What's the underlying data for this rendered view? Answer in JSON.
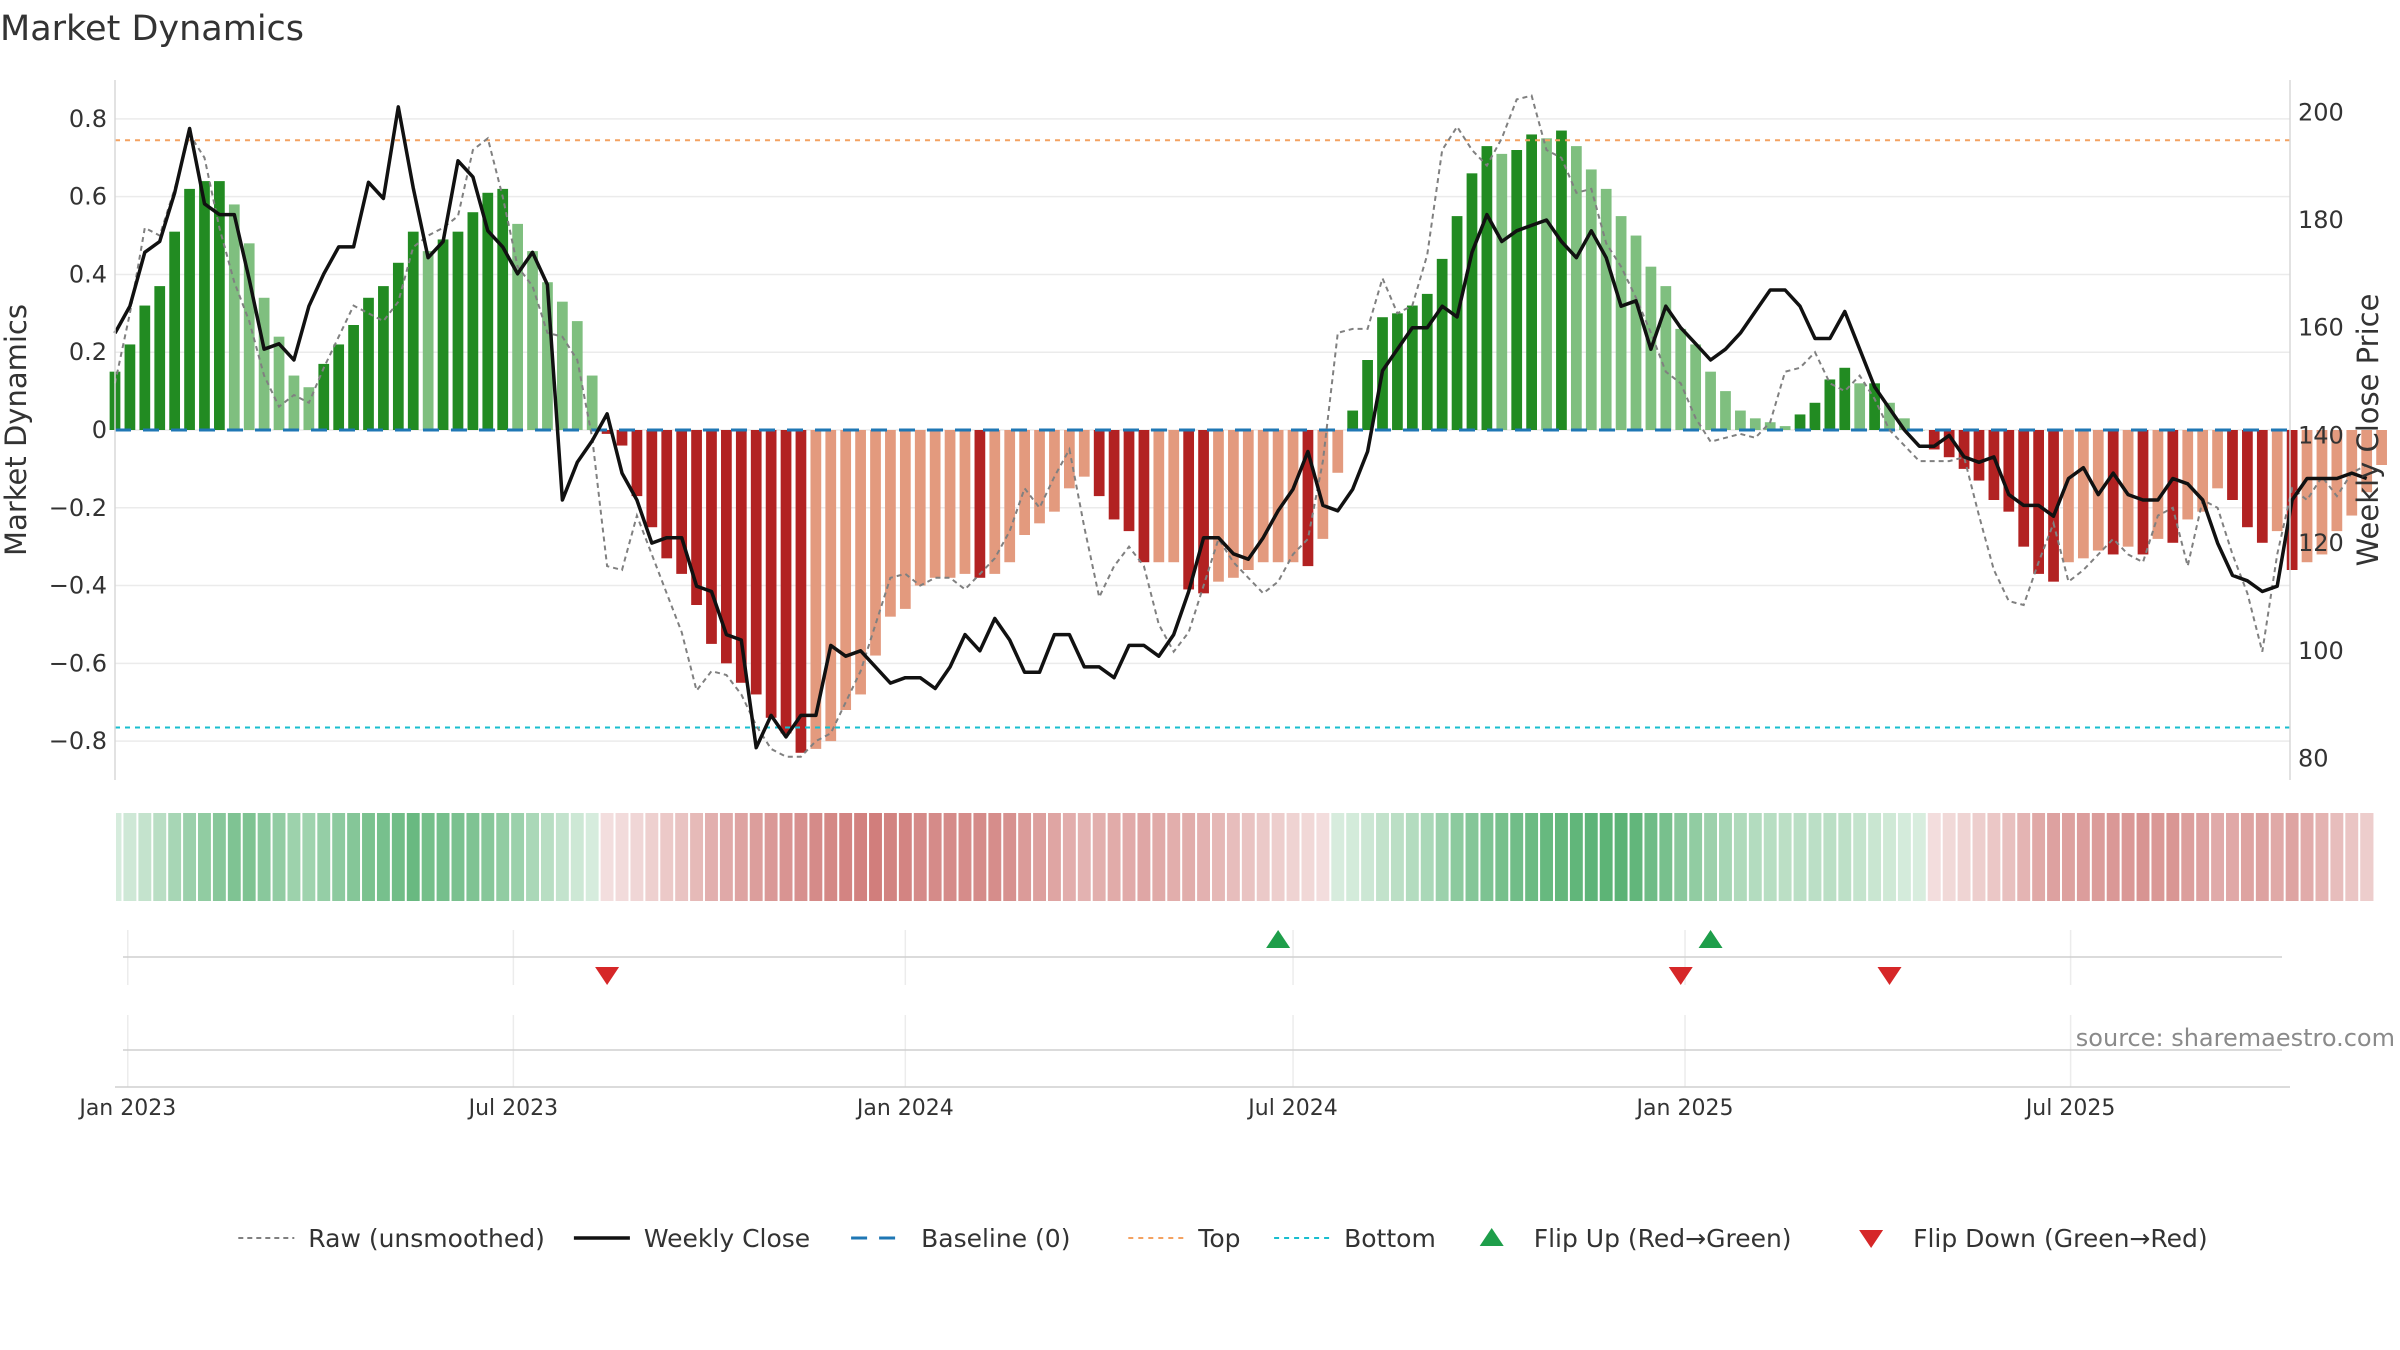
{
  "chart_data": {
    "type": "bar",
    "title": "Market Dynamics",
    "ylabel": "Market Dynamics",
    "y2label": "Weekly Close Price",
    "ylim": [
      -0.9,
      0.9
    ],
    "y2lim": [
      76,
      206
    ],
    "xlim": [
      "2022-12-26",
      "2025-10-12"
    ],
    "yticks": [
      0.8,
      0.6,
      0.4,
      0.2,
      0,
      -0.2,
      -0.4,
      -0.6,
      -0.8
    ],
    "ytick_labels": [
      "0.8",
      "0.6",
      "0.4",
      "0.2",
      "0",
      "−0.2",
      "−0.4",
      "−0.6",
      "−0.8"
    ],
    "y2ticks": [
      200,
      180,
      160,
      140,
      120,
      100,
      80
    ],
    "y2tick_labels": [
      "200",
      "180",
      "160",
      "140",
      "120",
      "100",
      "80"
    ],
    "xticks": [
      {
        "date": "2023-01-01",
        "label": "Jan 2023"
      },
      {
        "date": "2023-07-01",
        "label": "Jul 2023"
      },
      {
        "date": "2024-01-01",
        "label": "Jan 2024"
      },
      {
        "date": "2024-07-01",
        "label": "Jul 2024"
      },
      {
        "date": "2025-01-01",
        "label": "Jan 2025"
      },
      {
        "date": "2025-07-01",
        "label": "Jul 2025"
      }
    ],
    "start_date": "2022-12-26",
    "week_days": 7,
    "top": 0.745,
    "bottom": -0.765,
    "baseline": 0,
    "bars": [
      0.15,
      0.22,
      0.32,
      0.37,
      0.51,
      0.62,
      0.64,
      0.64,
      0.58,
      0.48,
      0.34,
      0.24,
      0.14,
      0.11,
      0.17,
      0.22,
      0.27,
      0.34,
      0.37,
      0.43,
      0.51,
      0.46,
      0.49,
      0.51,
      0.56,
      0.61,
      0.62,
      0.53,
      0.46,
      0.38,
      0.33,
      0.28,
      0.14,
      -0.01,
      -0.04,
      -0.17,
      -0.25,
      -0.33,
      -0.37,
      -0.45,
      -0.55,
      -0.6,
      -0.65,
      -0.68,
      -0.74,
      -0.78,
      -0.83,
      -0.82,
      -0.8,
      -0.72,
      -0.68,
      -0.58,
      -0.48,
      -0.46,
      -0.4,
      -0.38,
      -0.38,
      -0.37,
      -0.38,
      -0.37,
      -0.34,
      -0.27,
      -0.24,
      -0.21,
      -0.15,
      -0.12,
      -0.17,
      -0.23,
      -0.26,
      -0.34,
      -0.34,
      -0.34,
      -0.41,
      -0.42,
      -0.39,
      -0.38,
      -0.36,
      -0.34,
      -0.34,
      -0.34,
      -0.35,
      -0.28,
      -0.11,
      0.05,
      0.18,
      0.29,
      0.3,
      0.32,
      0.35,
      0.44,
      0.55,
      0.66,
      0.73,
      0.71,
      0.72,
      0.76,
      0.75,
      0.77,
      0.73,
      0.67,
      0.62,
      0.55,
      0.5,
      0.42,
      0.37,
      0.26,
      0.22,
      0.15,
      0.1,
      0.05,
      0.03,
      0.02,
      0.01,
      0.04,
      0.07,
      0.13,
      0.16,
      0.12,
      0.12,
      0.07,
      0.03,
      0.0,
      -0.05,
      -0.07,
      -0.1,
      -0.13,
      -0.18,
      -0.21,
      -0.3,
      -0.37,
      -0.39,
      -0.34,
      -0.33,
      -0.31,
      -0.32,
      -0.3,
      -0.32,
      -0.28,
      -0.29,
      -0.23,
      -0.21,
      -0.15,
      -0.18,
      -0.25,
      -0.29,
      -0.26,
      -0.36,
      -0.34,
      -0.32,
      -0.26,
      -0.22,
      -0.16,
      -0.09
    ],
    "raw": [
      0.12,
      0.3,
      0.52,
      0.5,
      0.62,
      0.76,
      0.7,
      0.52,
      0.38,
      0.28,
      0.14,
      0.06,
      0.09,
      0.07,
      0.16,
      0.24,
      0.32,
      0.3,
      0.28,
      0.33,
      0.47,
      0.5,
      0.52,
      0.55,
      0.72,
      0.75,
      0.6,
      0.42,
      0.37,
      0.25,
      0.24,
      0.18,
      -0.02,
      -0.35,
      -0.36,
      -0.22,
      -0.32,
      -0.42,
      -0.52,
      -0.67,
      -0.62,
      -0.63,
      -0.68,
      -0.76,
      -0.82,
      -0.84,
      -0.84,
      -0.8,
      -0.78,
      -0.7,
      -0.62,
      -0.5,
      -0.38,
      -0.37,
      -0.4,
      -0.38,
      -0.38,
      -0.41,
      -0.37,
      -0.33,
      -0.26,
      -0.15,
      -0.2,
      -0.12,
      -0.05,
      -0.25,
      -0.43,
      -0.35,
      -0.3,
      -0.35,
      -0.5,
      -0.57,
      -0.52,
      -0.4,
      -0.28,
      -0.34,
      -0.38,
      -0.42,
      -0.39,
      -0.32,
      -0.28,
      -0.08,
      0.25,
      0.26,
      0.26,
      0.39,
      0.3,
      0.32,
      0.45,
      0.72,
      0.78,
      0.72,
      0.68,
      0.75,
      0.85,
      0.86,
      0.72,
      0.7,
      0.61,
      0.62,
      0.48,
      0.42,
      0.34,
      0.25,
      0.15,
      0.12,
      0.03,
      -0.03,
      -0.02,
      -0.01,
      -0.02,
      0.02,
      0.15,
      0.16,
      0.2,
      0.12,
      0.1,
      0.14,
      0.08,
      0.0,
      -0.04,
      -0.08,
      -0.08,
      -0.08,
      -0.07,
      -0.22,
      -0.36,
      -0.44,
      -0.45,
      -0.34,
      -0.24,
      -0.39,
      -0.36,
      -0.32,
      -0.28,
      -0.32,
      -0.34,
      -0.22,
      -0.2,
      -0.35,
      -0.18,
      -0.2,
      -0.32,
      -0.42,
      -0.57,
      -0.32,
      -0.15,
      -0.18,
      -0.12,
      -0.17,
      -0.11,
      -0.09
    ],
    "close": [
      159,
      164,
      174,
      176,
      185,
      197,
      183,
      181,
      181,
      169,
      156,
      157,
      154,
      164,
      170,
      175,
      175,
      187,
      184,
      201,
      186,
      173,
      176,
      191,
      188,
      178,
      175,
      170,
      174,
      168,
      128,
      135,
      139,
      144,
      133,
      128,
      120,
      121,
      121,
      112,
      111,
      103,
      102,
      82,
      88,
      84,
      88,
      88,
      101,
      99,
      100,
      97,
      94,
      95,
      95,
      93,
      97,
      103,
      100,
      106,
      102,
      96,
      96,
      103,
      103,
      97,
      97,
      95,
      101,
      101,
      99,
      103,
      111,
      121,
      121,
      118,
      117,
      121,
      126,
      130,
      137,
      127,
      126,
      130,
      137,
      152,
      156,
      160,
      160,
      164,
      162,
      174,
      181,
      176,
      178,
      179,
      180,
      176,
      173,
      178,
      173,
      164,
      165,
      156,
      164,
      160,
      157,
      154,
      156,
      159,
      163,
      167,
      167,
      164,
      158,
      158,
      163,
      156,
      149,
      145,
      141,
      138,
      138,
      140,
      136,
      135,
      136,
      129,
      127,
      127,
      125,
      132,
      134,
      129,
      133,
      129,
      128,
      128,
      132,
      131,
      128,
      120,
      114,
      113,
      111,
      112,
      128,
      132,
      132,
      132,
      133,
      132
    ],
    "regime": [
      1,
      1,
      1,
      1,
      1,
      1,
      1,
      1,
      1,
      1,
      1,
      1,
      1,
      1,
      1,
      1,
      1,
      1,
      1,
      1,
      1,
      1,
      1,
      1,
      1,
      1,
      1,
      1,
      1,
      1,
      1,
      1,
      1,
      -1,
      -1,
      -1,
      -1,
      -1,
      -1,
      -1,
      -1,
      -1,
      -1,
      -1,
      -1,
      -1,
      -1,
      -1,
      -1,
      -1,
      -1,
      -1,
      -1,
      -1,
      -1,
      -1,
      -1,
      -1,
      -1,
      -1,
      -1,
      -1,
      -1,
      -1,
      -1,
      -1,
      -1,
      -1,
      -1,
      -1,
      -1,
      -1,
      -1,
      -1,
      -1,
      -1,
      -1,
      -1,
      -1,
      -1,
      -1,
      -1,
      1,
      1,
      1,
      1,
      1,
      1,
      1,
      1,
      1,
      1,
      1,
      1,
      1,
      1,
      1,
      1,
      1,
      1,
      1,
      1,
      1,
      1,
      1,
      1,
      1,
      1,
      1,
      1,
      1,
      1,
      1,
      1,
      1,
      1,
      1,
      1,
      1,
      1,
      1,
      1,
      -1,
      -1,
      -1,
      -1,
      -1,
      -1,
      -1,
      -1,
      -1,
      -1,
      -1,
      -1,
      -1,
      -1,
      -1,
      -1,
      -1,
      -1,
      -1,
      -1,
      -1,
      -1,
      -1,
      -1,
      -1,
      -1,
      -1,
      -1,
      -1,
      -1,
      -1,
      -1,
      -1
    ],
    "flips_up": [
      "2024-06-24",
      "2025-01-13"
    ],
    "flips_down": [
      "2023-08-14",
      "2024-12-30",
      "2025-04-07"
    ],
    "legend": [
      {
        "label": "Raw (unsmoothed)",
        "style": "raw"
      },
      {
        "label": "Weekly Close",
        "style": "close"
      },
      {
        "label": "Baseline (0)",
        "style": "baseline"
      },
      {
        "label": "Top",
        "style": "top"
      },
      {
        "label": "Bottom",
        "style": "bottom"
      },
      {
        "label": "Flip Up (Red→Green)",
        "style": "flipup"
      },
      {
        "label": "Flip Down (Green→Red)",
        "style": "flipdown"
      }
    ],
    "legend_position": "bottom",
    "source": "source: sharemaestro.com",
    "colors": {
      "green_strong": "#228b22",
      "green_light": "#7fbf7f",
      "red_strong": "#b22222",
      "red_light": "#e39a7e",
      "close_line": "#111111",
      "raw_line": "#808080",
      "baseline": "#1f77b4",
      "top": "#f4a261",
      "bottom": "#17becf",
      "flip_up": "#1e9e4a",
      "flip_down": "#d62728"
    }
  }
}
